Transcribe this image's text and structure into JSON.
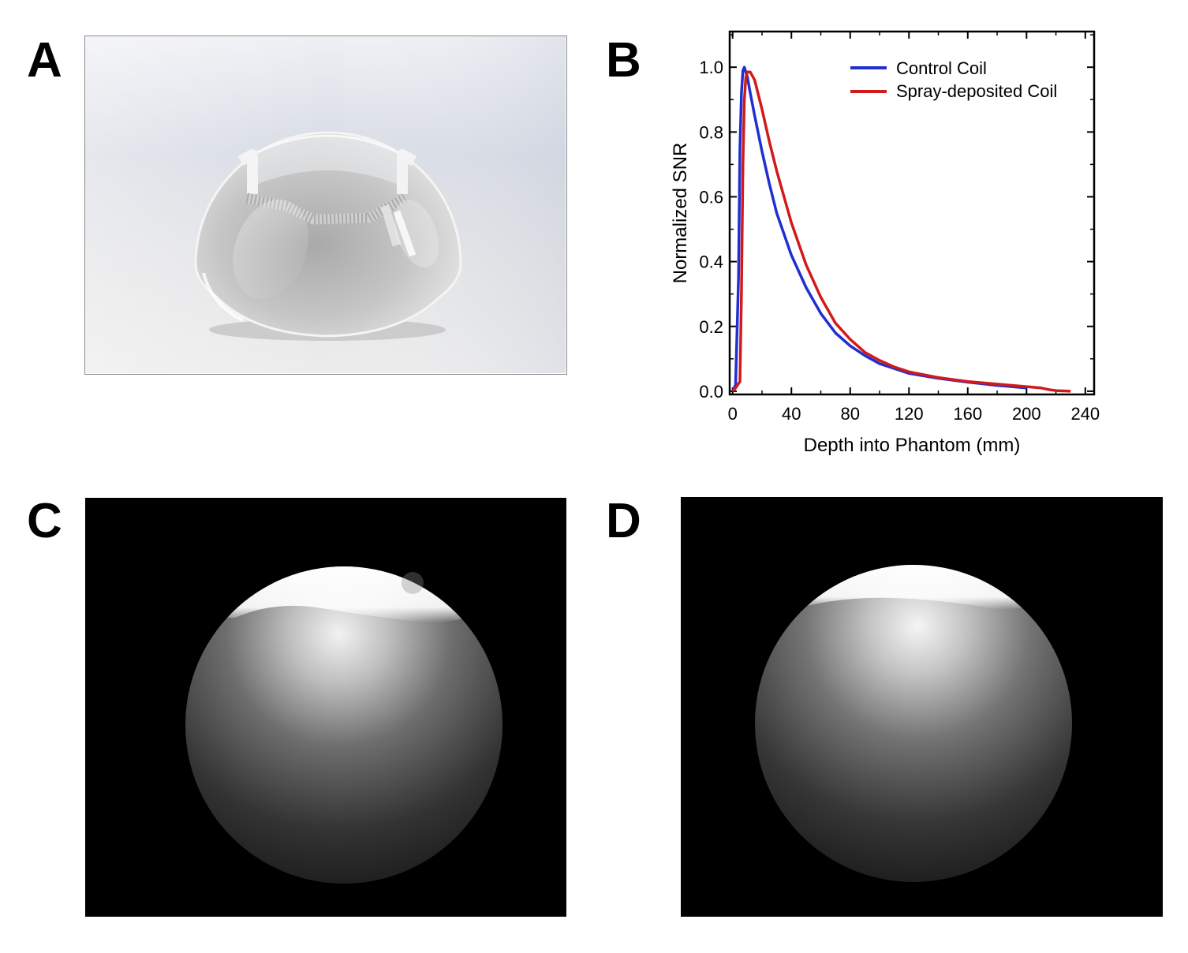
{
  "panels": {
    "a": {
      "letter": "A"
    },
    "b": {
      "letter": "B"
    },
    "c": {
      "letter": "C"
    },
    "d": {
      "letter": "D"
    }
  },
  "chart_data": {
    "type": "line",
    "xlabel": "Depth into Phantom (mm)",
    "ylabel": "Normalized SNR",
    "xlim": [
      -2,
      246
    ],
    "ylim": [
      -0.01,
      1.11
    ],
    "xticks": [
      0,
      40,
      80,
      120,
      160,
      200,
      240
    ],
    "yticks": [
      0.0,
      0.2,
      0.4,
      0.6,
      0.8,
      1.0
    ],
    "xtick_labels": [
      "0",
      "40",
      "80",
      "120",
      "160",
      "200",
      "240"
    ],
    "ytick_labels": [
      "0.0",
      "0.2",
      "0.4",
      "0.6",
      "0.8",
      "1.0"
    ],
    "grid": false,
    "legend_position": "top-right",
    "series": [
      {
        "name": "Control Coil",
        "color": "#1f2fd1",
        "x": [
          0,
          2,
          4,
          5,
          6,
          7,
          8,
          10,
          12,
          15,
          20,
          25,
          30,
          40,
          50,
          60,
          70,
          80,
          90,
          100,
          110,
          120,
          140,
          160,
          180,
          200
        ],
        "y": [
          0.0,
          0.02,
          0.35,
          0.75,
          0.92,
          0.99,
          1.0,
          0.97,
          0.92,
          0.85,
          0.74,
          0.64,
          0.55,
          0.42,
          0.32,
          0.24,
          0.18,
          0.14,
          0.11,
          0.085,
          0.07,
          0.055,
          0.04,
          0.028,
          0.018,
          0.01
        ]
      },
      {
        "name": "Spray-deposited Coil",
        "color": "#d11a1a",
        "x": [
          0,
          2,
          5,
          6,
          7,
          8,
          9,
          10,
          12,
          15,
          20,
          25,
          30,
          40,
          50,
          60,
          70,
          80,
          90,
          100,
          110,
          120,
          140,
          160,
          180,
          200,
          210,
          215,
          220,
          230
        ],
        "y": [
          0.0,
          0.01,
          0.03,
          0.3,
          0.7,
          0.9,
          0.97,
          0.985,
          0.985,
          0.96,
          0.87,
          0.77,
          0.68,
          0.52,
          0.39,
          0.29,
          0.21,
          0.16,
          0.12,
          0.095,
          0.075,
          0.06,
          0.042,
          0.03,
          0.022,
          0.014,
          0.01,
          0.005,
          0.002,
          0.0
        ]
      }
    ]
  }
}
